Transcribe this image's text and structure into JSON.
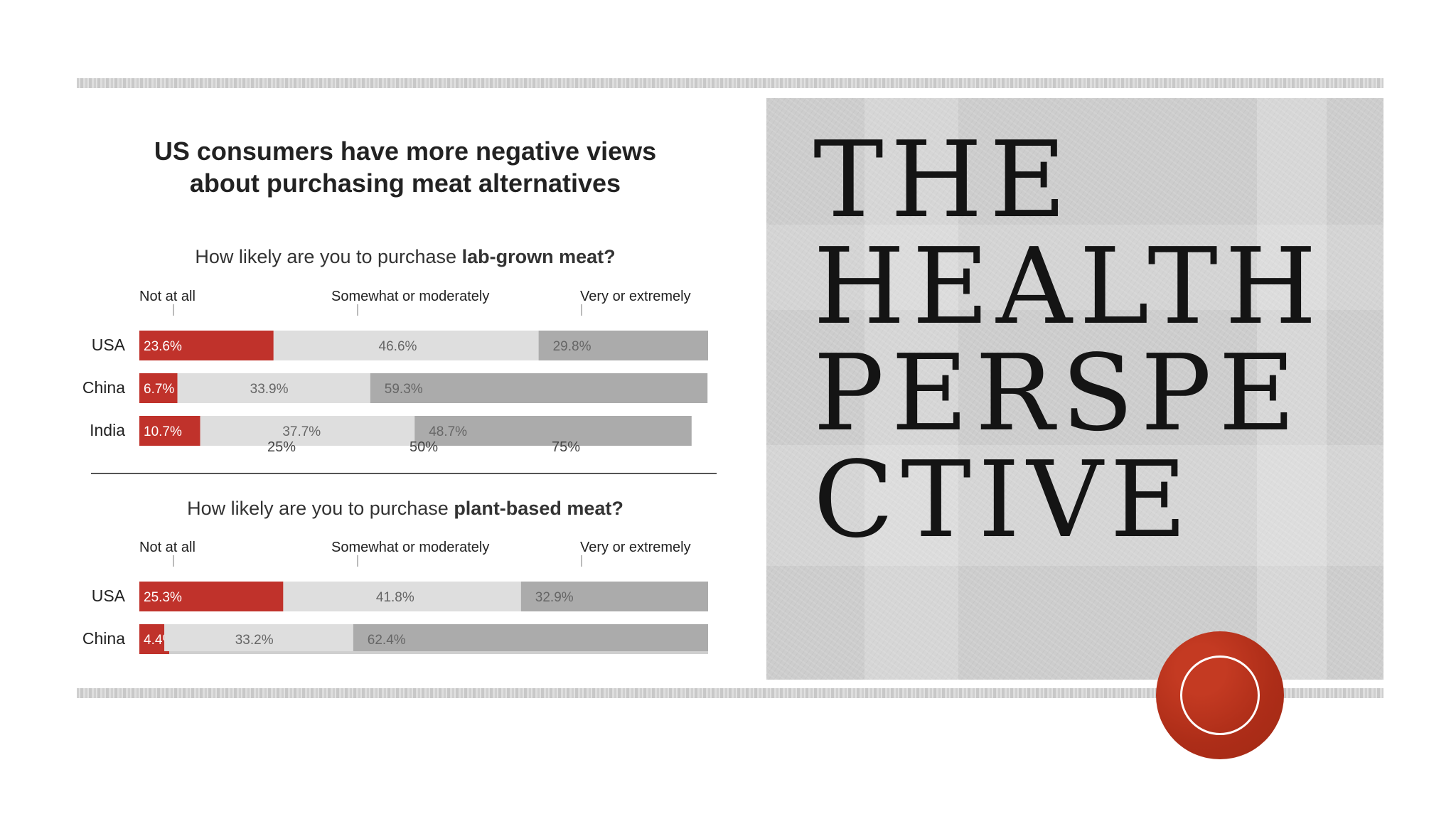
{
  "slide": {
    "title_lines": [
      "THE",
      "HEALTH",
      "PERSPE",
      "CTIVE"
    ]
  },
  "colors": {
    "not_at_all": "#c0322b",
    "somewhat": "#dedede",
    "very": "#ababab",
    "badge": "#b7321d"
  },
  "chart_data": {
    "type": "bar",
    "stacked": true,
    "orientation": "horizontal",
    "title": "US consumers have more negative views about purchasing meat alternatives",
    "legend": [
      "Not at all",
      "Somewhat or moderately",
      "Very or extremely"
    ],
    "panels": [
      {
        "question_prefix": "How likely are you to purchase ",
        "question_bold": "lab-grown meat?",
        "categories": [
          "USA",
          "China",
          "India"
        ],
        "series": [
          {
            "name": "Not at all",
            "values": [
              23.6,
              6.7,
              10.7
            ],
            "labels": [
              "23.6%",
              "6.7%",
              "10.7%"
            ]
          },
          {
            "name": "Somewhat or moderately",
            "values": [
              46.6,
              33.9,
              37.7
            ],
            "labels": [
              "46.6%",
              "33.9%",
              "37.7%"
            ]
          },
          {
            "name": "Very or extremely",
            "values": [
              29.8,
              59.3,
              48.7
            ],
            "labels": [
              "29.8%",
              "59.3%",
              "48.7%"
            ]
          }
        ],
        "ticks": [
          "25%",
          "50%",
          "75%"
        ],
        "xlim": [
          0,
          100
        ]
      },
      {
        "question_prefix": "How likely are you to purchase ",
        "question_bold": "plant-based meat?",
        "categories": [
          "USA",
          "China"
        ],
        "series": [
          {
            "name": "Not at all",
            "values": [
              25.3,
              4.4
            ],
            "labels": [
              "25.3%",
              "4.4%"
            ]
          },
          {
            "name": "Somewhat or moderately",
            "values": [
              41.8,
              33.2
            ],
            "labels": [
              "41.8%",
              "33.2%"
            ]
          },
          {
            "name": "Very or extremely",
            "values": [
              32.9,
              62.4
            ],
            "labels": [
              "32.9%",
              "62.4%"
            ]
          }
        ],
        "xlim": [
          0,
          100
        ]
      }
    ]
  }
}
